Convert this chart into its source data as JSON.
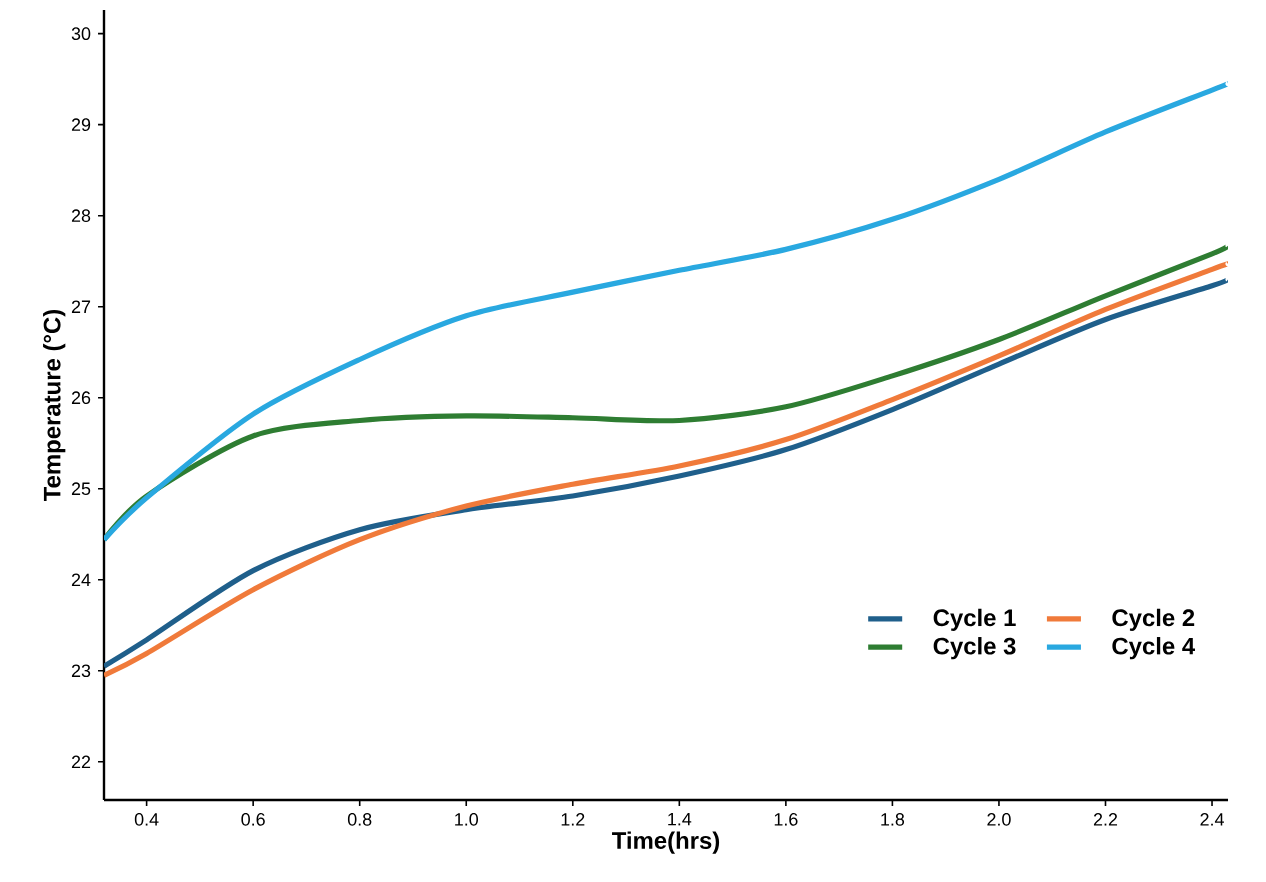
{
  "chart_data": {
    "type": "line",
    "xlabel": "Time(hrs)",
    "ylabel": "Temperature (°C)",
    "x": [
      0.32,
      0.4,
      0.6,
      0.8,
      1.0,
      1.2,
      1.4,
      1.6,
      1.8,
      2.0,
      2.2,
      2.4,
      2.43
    ],
    "series": [
      {
        "name": "Cycle 1",
        "color": "#1f5f8b",
        "values": [
          23.05,
          23.34,
          24.1,
          24.55,
          24.77,
          24.92,
          25.14,
          25.43,
          25.87,
          26.37,
          26.86,
          27.23,
          27.3
        ]
      },
      {
        "name": "Cycle 2",
        "color": "#f07a3a",
        "values": [
          22.95,
          23.19,
          23.89,
          24.44,
          24.81,
          25.05,
          25.25,
          25.54,
          25.98,
          26.46,
          26.97,
          27.41,
          27.47
        ]
      },
      {
        "name": "Cycle 3",
        "color": "#2e7d32",
        "values": [
          24.44,
          24.92,
          25.58,
          25.75,
          25.8,
          25.78,
          25.75,
          25.9,
          26.24,
          26.64,
          27.12,
          27.58,
          27.67
        ]
      },
      {
        "name": "Cycle 4",
        "color": "#29a8e0",
        "values": [
          24.44,
          24.9,
          25.82,
          26.42,
          26.9,
          27.16,
          27.4,
          27.63,
          27.96,
          28.4,
          28.92,
          29.38,
          29.45
        ]
      }
    ],
    "xlim": [
      0.32,
      2.43
    ],
    "ylim": [
      21.58,
      30.26
    ],
    "xticks": [
      0.4,
      0.6,
      0.8,
      {
        "value": 1.0,
        "label": "1.0"
      },
      1.2,
      1.4,
      1.6,
      1.8,
      {
        "value": 2.0,
        "label": "2.0"
      },
      2.2,
      2.4
    ],
    "yticks": [
      22,
      23,
      24,
      25,
      26,
      27,
      28,
      29,
      30
    ],
    "grid": false,
    "legend": "bottom right",
    "marker": "none",
    "line_style": "solid"
  }
}
